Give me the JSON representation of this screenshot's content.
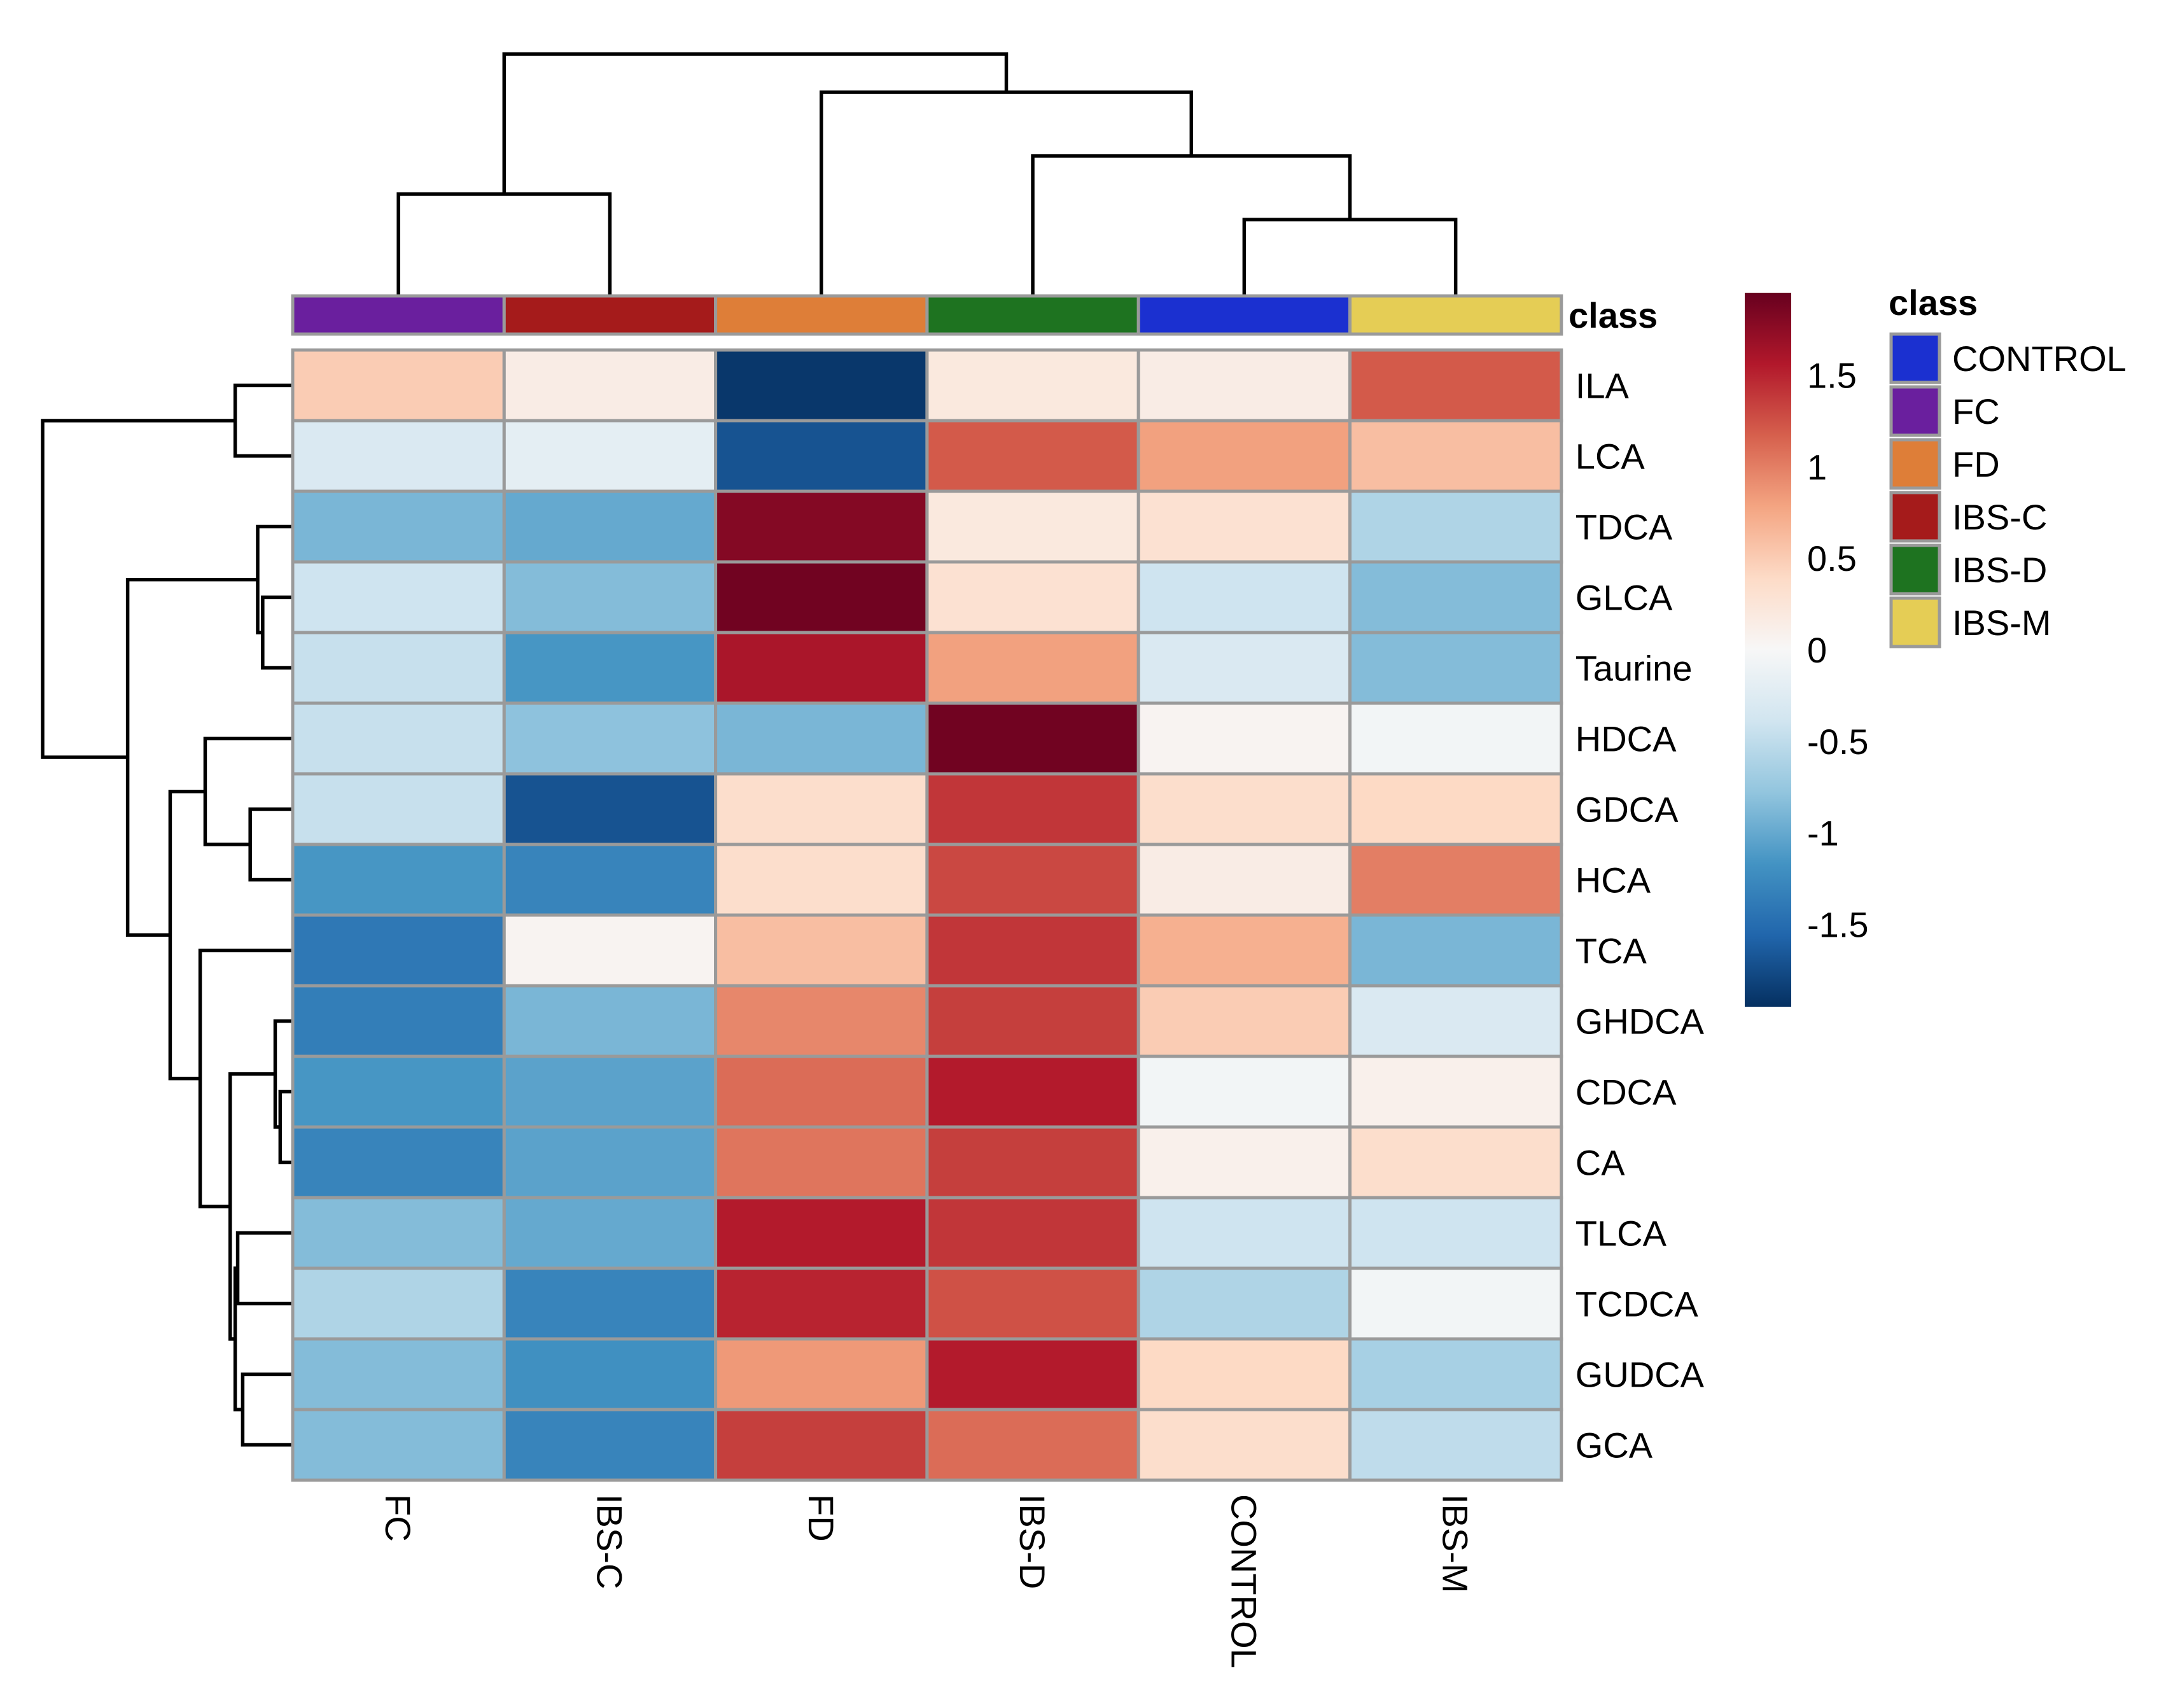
{
  "chart_data": {
    "type": "heatmap",
    "columns": [
      "FC",
      "IBS-C",
      "FD",
      "IBS-D",
      "CONTROL",
      "IBS-M"
    ],
    "rows": [
      "ILA",
      "LCA",
      "TDCA",
      "GLCA",
      "Taurine",
      "HDCA",
      "GDCA",
      "HCA",
      "TCA",
      "GHDCA",
      "CDCA",
      "CA",
      "TLCA",
      "TCDCA",
      "GUDCA",
      "GCA"
    ],
    "values": [
      [
        0.5,
        0.15,
        -1.9,
        0.2,
        0.15,
        1.2
      ],
      [
        -0.3,
        -0.2,
        -1.7,
        1.2,
        0.8,
        0.6
      ],
      [
        -0.9,
        -1.0,
        1.8,
        0.2,
        0.3,
        -0.6
      ],
      [
        -0.4,
        -0.85,
        1.9,
        0.3,
        -0.4,
        -0.85
      ],
      [
        -0.45,
        -1.15,
        1.6,
        0.8,
        -0.3,
        -0.85
      ],
      [
        -0.45,
        -0.8,
        -0.9,
        1.9,
        0.05,
        -0.05
      ],
      [
        -0.45,
        -1.7,
        0.35,
        1.4,
        0.35,
        0.4
      ],
      [
        -1.15,
        -1.3,
        0.35,
        1.3,
        0.15,
        1.0
      ],
      [
        -1.4,
        0.05,
        0.6,
        1.4,
        0.7,
        -0.9
      ],
      [
        -1.35,
        -0.9,
        0.95,
        1.35,
        0.5,
        -0.3
      ],
      [
        -1.15,
        -1.05,
        1.1,
        1.55,
        -0.05,
        0.1
      ],
      [
        -1.3,
        -1.05,
        1.05,
        1.35,
        0.1,
        0.35
      ],
      [
        -0.85,
        -1.0,
        1.55,
        1.4,
        -0.4,
        -0.4
      ],
      [
        -0.6,
        -1.3,
        1.5,
        1.25,
        -0.6,
        -0.05
      ],
      [
        -0.85,
        -1.2,
        0.85,
        1.55,
        0.4,
        -0.65
      ],
      [
        -0.85,
        -1.3,
        1.35,
        1.1,
        0.35,
        -0.5
      ]
    ],
    "class_label": "class",
    "column_classes": [
      "FC",
      "IBS-C",
      "FD",
      "IBS-D",
      "CONTROL",
      "IBS-M"
    ],
    "class_colors": {
      "CONTROL": "#1b30d0",
      "FC": "#6a1f9e",
      "FD": "#de7e38",
      "IBS-C": "#a51b1b",
      "IBS-D": "#1e7320",
      "IBS-M": "#e5cd55"
    },
    "legend": {
      "title": "class",
      "entries": [
        "CONTROL",
        "FC",
        "FD",
        "IBS-C",
        "IBS-D",
        "IBS-M"
      ]
    },
    "color_scale": {
      "min": -1.95,
      "max": 1.95,
      "ticks": [
        "1.5",
        "1",
        "0.5",
        "0",
        "-0.5",
        "-1",
        "-1.5"
      ],
      "tick_values": [
        1.5,
        1,
        0.5,
        0,
        -0.5,
        -1,
        -1.5
      ],
      "stops": [
        "#053061",
        "#2166ac",
        "#4393c3",
        "#92c5de",
        "#d1e5f0",
        "#f7f7f7",
        "#fddbc7",
        "#f4a582",
        "#d6604d",
        "#b2182b",
        "#67001f"
      ]
    },
    "column_dendrogram": {
      "merges": [
        [
          1,
          2,
          0.4
        ],
        [
          5,
          6,
          0.3
        ],
        [
          4,
          -2,
          0.55
        ],
        [
          3,
          -3,
          0.8
        ],
        [
          -1,
          -4,
          0.95
        ]
      ]
    },
    "row_dendrogram": {
      "merges": [
        [
          1,
          2,
          0.23
        ],
        [
          4,
          5,
          0.12
        ],
        [
          3,
          -2,
          0.14
        ],
        [
          7,
          8,
          0.17
        ],
        [
          6,
          -4,
          0.35
        ],
        [
          11,
          12,
          0.05
        ],
        [
          10,
          -6,
          0.07
        ],
        [
          13,
          14,
          0.22
        ],
        [
          15,
          16,
          0.2
        ],
        [
          -8,
          -9,
          0.23
        ],
        [
          -7,
          -10,
          0.25
        ],
        [
          9,
          -11,
          0.37
        ],
        [
          -5,
          -12,
          0.49
        ],
        [
          -3,
          -13,
          0.66
        ],
        [
          -1,
          -14,
          1.0
        ]
      ]
    }
  }
}
